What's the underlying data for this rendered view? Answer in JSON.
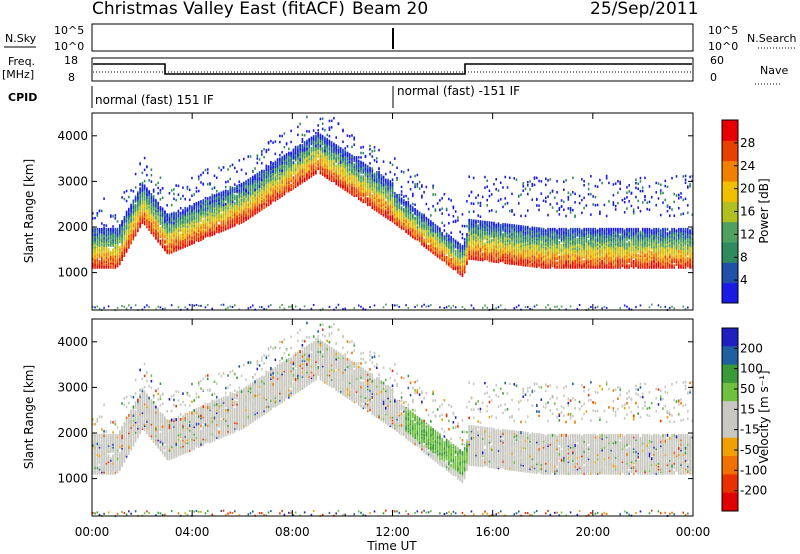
{
  "header": {
    "title": "Christmas Valley East (fitACF)",
    "beam": "Beam 20",
    "date": "25/Sep/2011"
  },
  "params": {
    "nsky_label": "N.Sky",
    "nsearch_label": "N.Search",
    "freq_label": "Freq.",
    "freq_unit": "[MHz]",
    "nave_label": "Nave",
    "cpid_label": "CPID",
    "log_top": "10^5",
    "log_bottom": "10^0",
    "freq_top": "18",
    "freq_bottom": "8",
    "nave_top": "60",
    "nave_bottom": "0",
    "cpid_1": "normal (fast) 151 IF",
    "cpid_2": "normal (fast) -151 IF"
  },
  "chart_data": [
    {
      "type": "heatmap",
      "xlabel": "",
      "ylabel": "Slant Range [km]",
      "x_ticks": [
        "00:00",
        "04:00",
        "08:00",
        "12:00",
        "16:00",
        "20:00",
        "00:00"
      ],
      "xlim": [
        0,
        24
      ],
      "ylim": [
        180,
        4500
      ],
      "y_ticks": [
        1000,
        2000,
        3000,
        4000
      ],
      "colorbar": {
        "label": "Power [dB]",
        "ticks": [
          "4",
          "8",
          "12",
          "16",
          "20",
          "24",
          "28"
        ],
        "colors": [
          "#1a1ae6",
          "#2050a8",
          "#2f8b5f",
          "#50a060",
          "#b0c020",
          "#f0c000",
          "#f08000",
          "#e84000",
          "#e80000"
        ]
      },
      "features": {
        "band_range_km": [
          [
            0,
            1300
          ],
          [
            1,
            1300
          ],
          [
            2,
            2300
          ],
          [
            3,
            1600
          ],
          [
            6,
            2300
          ],
          [
            9,
            3400
          ],
          [
            12,
            2300
          ],
          [
            14.8,
            1100
          ],
          [
            15,
            1500
          ],
          [
            18,
            1300
          ],
          [
            24,
            1300
          ]
        ]
      }
    },
    {
      "type": "heatmap",
      "xlabel": "Time UT",
      "ylabel": "Slant Range [km]",
      "x_ticks": [
        "00:00",
        "04:00",
        "08:00",
        "12:00",
        "16:00",
        "20:00",
        "00:00"
      ],
      "xlim": [
        0,
        24
      ],
      "ylim": [
        180,
        4500
      ],
      "y_ticks": [
        1000,
        2000,
        3000,
        4000
      ],
      "colorbar": {
        "label": "Velocity [m s⁻¹]",
        "ticks": [
          "200",
          "100",
          "50",
          "15",
          "-15",
          "-50",
          "-100",
          "-200"
        ],
        "colors": [
          "#2020c0",
          "#2060a0",
          "#3a9a3a",
          "#70c040",
          "#c8c8c0",
          "#c8c8c0",
          "#f0a000",
          "#f07000",
          "#e83000",
          "#e00000"
        ]
      }
    }
  ]
}
